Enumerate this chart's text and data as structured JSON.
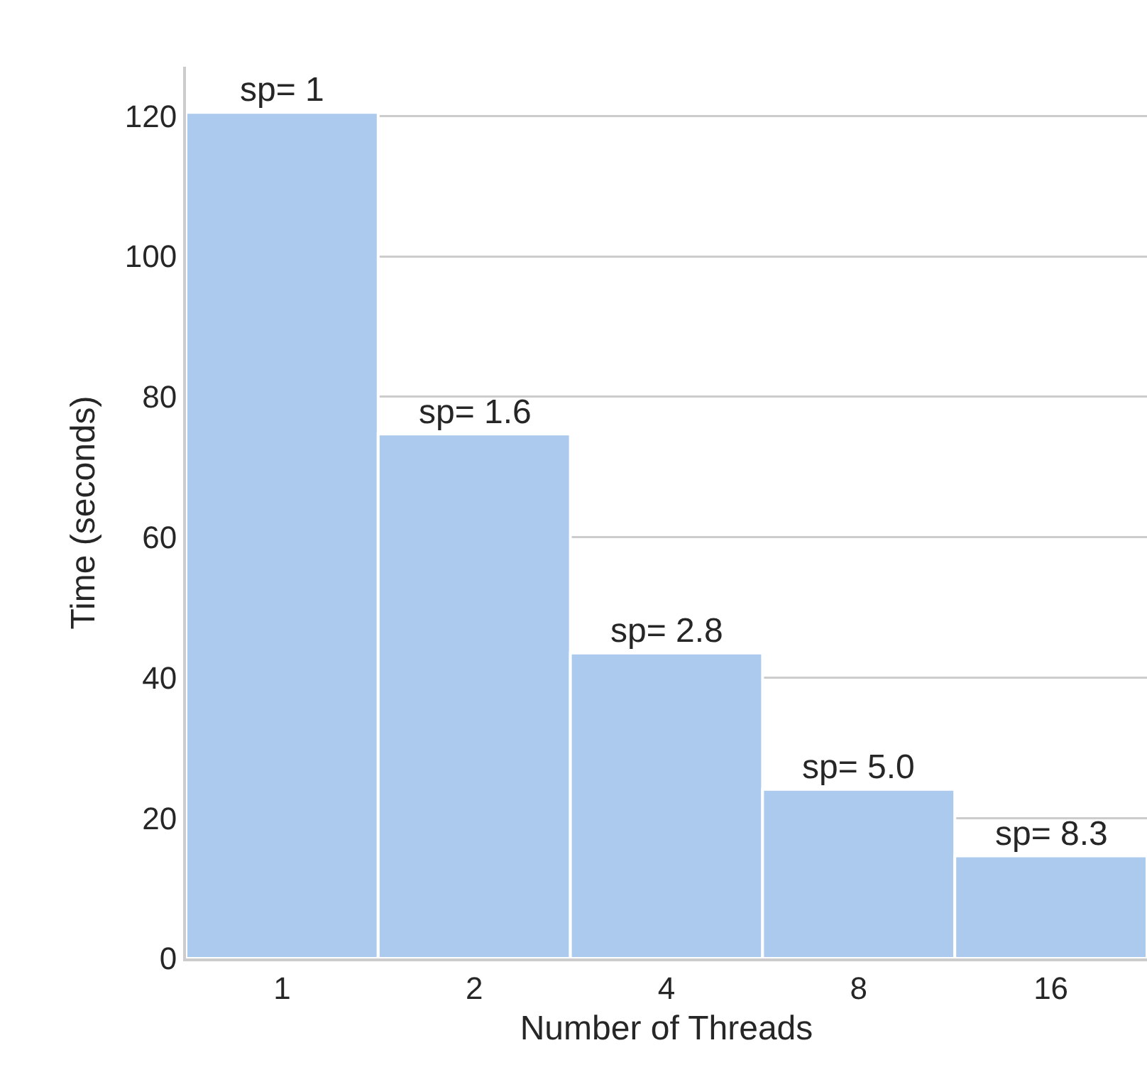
{
  "chart_data": {
    "type": "bar",
    "categories": [
      "1",
      "2",
      "4",
      "8",
      "16"
    ],
    "values": [
      120.5,
      74.7,
      43.5,
      24.1,
      14.6
    ],
    "annotations": [
      {
        "text": "sp= 1",
        "x": "1",
        "y": 120.5
      },
      {
        "text": "sp= 1.6",
        "x": "2",
        "y": 74.7
      },
      {
        "text": "sp= 2.8",
        "x": "4",
        "y": 43.5
      },
      {
        "text": "sp= 5.0",
        "x": "8",
        "y": 24.1
      },
      {
        "text": "sp= 8.3",
        "x": "16",
        "y": 14.6
      }
    ],
    "color": "#abcaee",
    "xlabel": "Number of Threads",
    "ylabel": "Time (seconds)",
    "ylim": [
      0,
      127
    ],
    "yticks": [
      0,
      20,
      40,
      60,
      80,
      100,
      120
    ],
    "grid": "y",
    "legend": false
  }
}
